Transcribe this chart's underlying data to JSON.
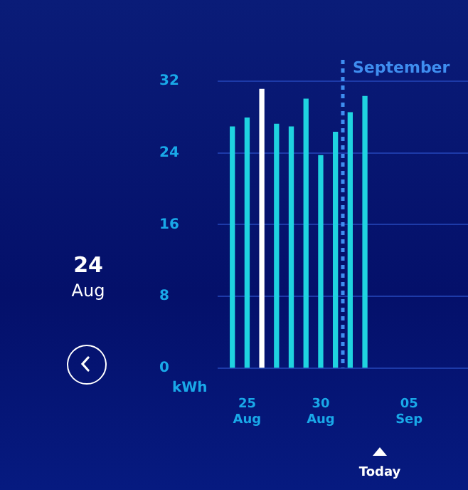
{
  "chart_data": {
    "type": "bar",
    "ylabel": "kWh",
    "x": [
      "--08-24",
      "--08-25",
      "--08-26",
      "--08-27",
      "--08-28",
      "--08-29",
      "--08-30",
      "--08-31",
      "--09-01",
      "--09-02"
    ],
    "values": [
      26.9,
      27.9,
      31.1,
      27.2,
      26.9,
      30.0,
      23.7,
      26.3,
      28.5,
      30.3
    ],
    "colors": [
      "#1fd3e0",
      "#1fd3e0",
      "#ffffff",
      "#1fd3e0",
      "#1fd3e0",
      "#1fd3e0",
      "#1fd3e0",
      "#1fd3e0",
      "#1fd3e0",
      "#1fd3e0"
    ],
    "ylim": [
      0,
      32
    ],
    "yticks": [
      0,
      8,
      16,
      24,
      32
    ],
    "xlim": [
      "--08-23",
      "--09-09"
    ],
    "xticks": [
      {
        "value": "--08-25",
        "label": "25 Aug"
      },
      {
        "value": "--08-30",
        "label": "30 Aug"
      },
      {
        "value": "--09-05",
        "label": "05 Sep"
      }
    ],
    "ref_lines": [
      {
        "axis": "x",
        "value": "--08-31T12:00",
        "label": "September",
        "color": "#3f8ef0",
        "line_style": "dotted"
      }
    ],
    "annotations": [
      "24 Aug",
      "Today"
    ],
    "grid": "y",
    "legend": false
  }
}
